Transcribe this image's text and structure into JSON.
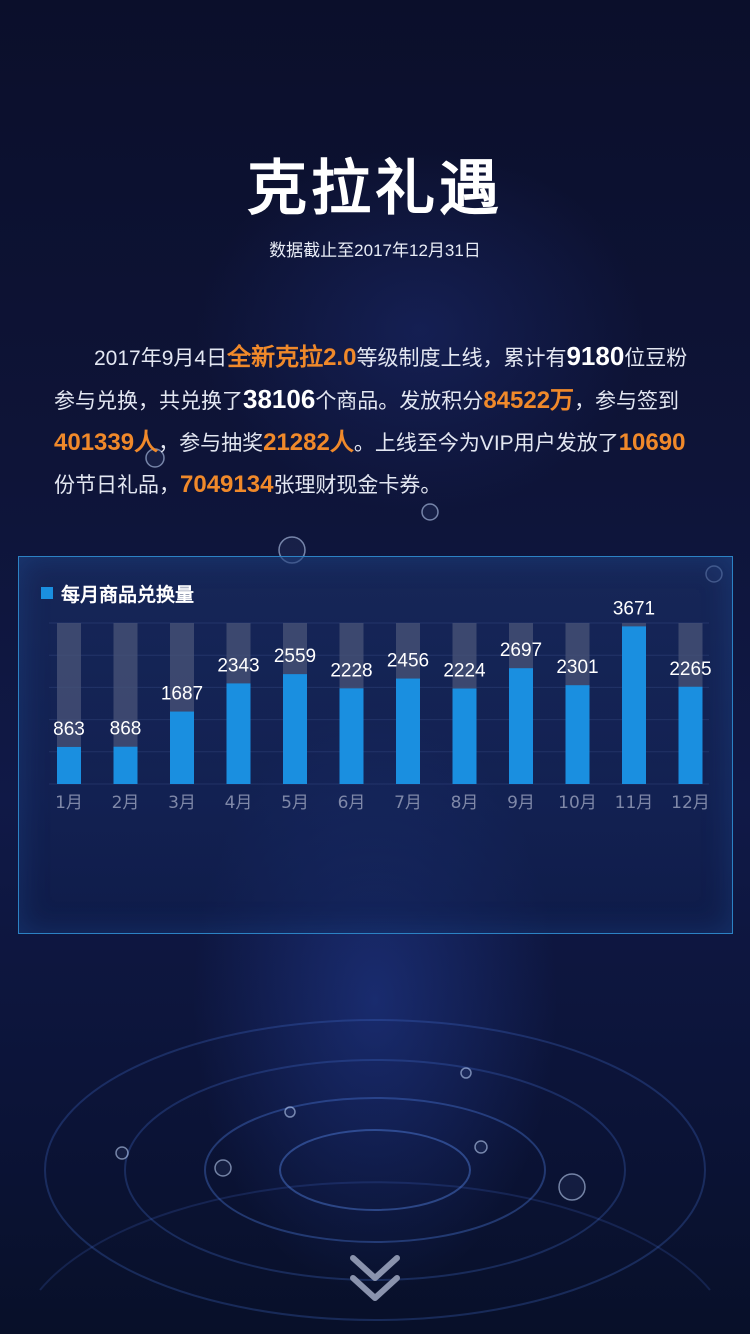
{
  "header": {
    "title": "克拉礼遇",
    "subtitle": "数据截止至2017年12月31日"
  },
  "intro": {
    "p1": "2017年9月4日",
    "h1": "全新克拉2.0",
    "p2": "等级制度上线，累计有",
    "b1": "9180",
    "p3": "位豆粉参与兑换，共兑换了",
    "b2": "38106",
    "p4": "个商品。发放积分",
    "h2": "84522万",
    "p5": "，参与签到",
    "h3": "401339人",
    "p6": "，参与抽奖",
    "h4": "21282人",
    "p7": "。上线至今为VIP用户发放了",
    "h5": "10690",
    "p8": "份节日礼品，",
    "h6": "7049134",
    "p9": "张理财现金卡券。"
  },
  "chart": {
    "legend_label": "每月商品兑换量"
  },
  "chart_data": {
    "type": "bar",
    "categories": [
      "1月",
      "2月",
      "3月",
      "4月",
      "5月",
      "6月",
      "7月",
      "8月",
      "9月",
      "10月",
      "11月",
      "12月"
    ],
    "values": [
      863,
      868,
      1687,
      2343,
      2559,
      2228,
      2456,
      2224,
      2697,
      2301,
      3671,
      2265
    ],
    "series": [
      {
        "name": "每月商品兑换量",
        "values": [
          863,
          868,
          1687,
          2343,
          2559,
          2228,
          2456,
          2224,
          2697,
          2301,
          3671,
          2265
        ]
      }
    ],
    "ylim": [
      0,
      3750
    ],
    "grid": true,
    "legend": "top-left",
    "colors": {
      "bar": "#1a8fe0",
      "track": "#4a5478",
      "label": "#ffffff",
      "tick": "#7f88a8"
    }
  },
  "icons": {
    "scroll_down": "double-chevron-down-icon"
  }
}
